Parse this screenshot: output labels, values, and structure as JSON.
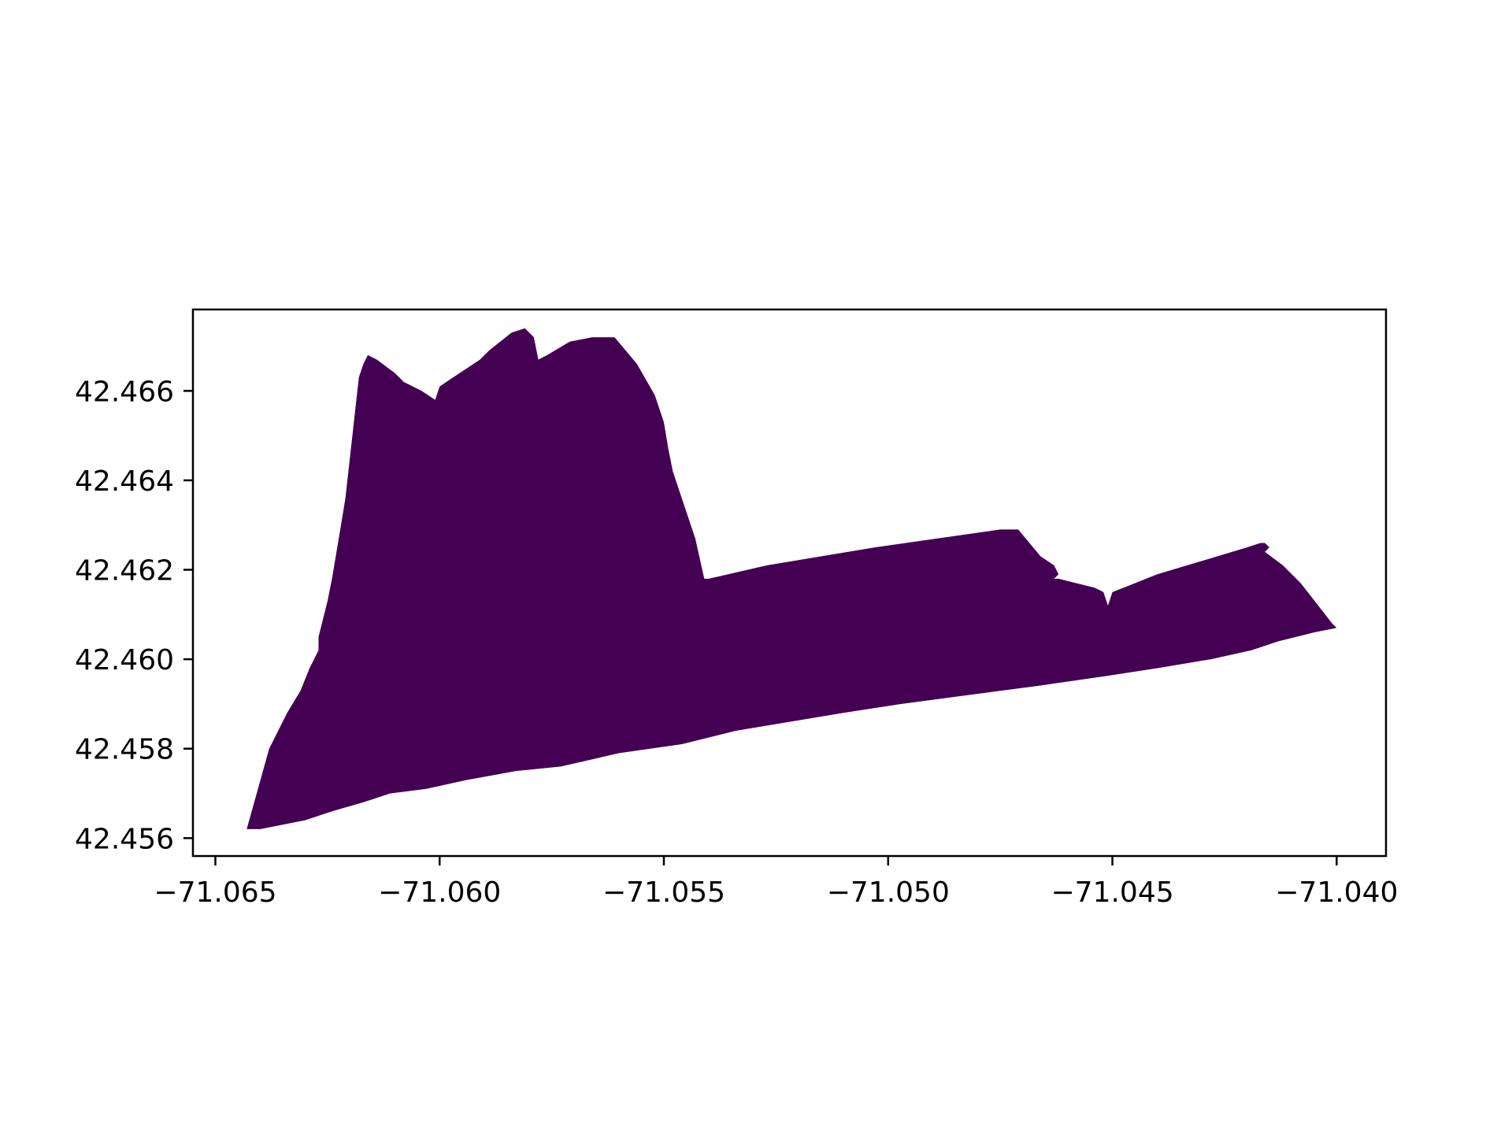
{
  "chart_data": {
    "type": "map",
    "title": "",
    "xlabel": "",
    "ylabel": "",
    "xlim": [
      -71.0655,
      -71.0389
    ],
    "ylim": [
      42.4556,
      42.46782
    ],
    "grid": false,
    "legend": false,
    "fill_color": "#440154",
    "axes_color": "#000000",
    "x_ticks": [
      {
        "value": -71.065,
        "label": "−71.065"
      },
      {
        "value": -71.06,
        "label": "−71.060"
      },
      {
        "value": -71.055,
        "label": "−71.055"
      },
      {
        "value": -71.05,
        "label": "−71.050"
      },
      {
        "value": -71.045,
        "label": "−71.045"
      },
      {
        "value": -71.04,
        "label": "−71.040"
      }
    ],
    "y_ticks": [
      {
        "value": 42.456,
        "label": "42.456"
      },
      {
        "value": 42.458,
        "label": "42.458"
      },
      {
        "value": 42.46,
        "label": "42.460"
      },
      {
        "value": 42.462,
        "label": "42.462"
      },
      {
        "value": 42.464,
        "label": "42.464"
      },
      {
        "value": 42.466,
        "label": "42.466"
      }
    ],
    "polygon": [
      [
        -71.0643,
        42.4562
      ],
      [
        -71.064,
        42.4562
      ],
      [
        -71.0635,
        42.4563
      ],
      [
        -71.063,
        42.4564
      ],
      [
        -71.0624,
        42.4566
      ],
      [
        -71.0617,
        42.4568
      ],
      [
        -71.0611,
        42.457
      ],
      [
        -71.0603,
        42.4571
      ],
      [
        -71.0594,
        42.4573
      ],
      [
        -71.0583,
        42.4575
      ],
      [
        -71.0573,
        42.4576
      ],
      [
        -71.056,
        42.4579
      ],
      [
        -71.0546,
        42.4581
      ],
      [
        -71.0534,
        42.4584
      ],
      [
        -71.0522,
        42.4586
      ],
      [
        -71.051,
        42.4588
      ],
      [
        -71.0497,
        42.459
      ],
      [
        -71.0482,
        42.4592
      ],
      [
        -71.0467,
        42.4594
      ],
      [
        -71.0453,
        42.4596
      ],
      [
        -71.044,
        42.4598
      ],
      [
        -71.0428,
        42.46
      ],
      [
        -71.0419,
        42.4602
      ],
      [
        -71.0413,
        42.4604
      ],
      [
        -71.0405,
        42.4606
      ],
      [
        -71.04,
        42.4607
      ],
      [
        -71.0401,
        42.4608
      ],
      [
        -71.0408,
        42.4617
      ],
      [
        -71.0412,
        42.4621
      ],
      [
        -71.0416,
        42.4624
      ],
      [
        -71.0415,
        42.4625
      ],
      [
        -71.0416,
        42.4626
      ],
      [
        -71.0417,
        42.4626
      ],
      [
        -71.042,
        42.4625
      ],
      [
        -71.043,
        42.4622
      ],
      [
        -71.044,
        42.4619
      ],
      [
        -71.0445,
        42.4617
      ],
      [
        -71.045,
        42.4615
      ],
      [
        -71.0451,
        42.4612
      ],
      [
        -71.0452,
        42.4615
      ],
      [
        -71.0454,
        42.4616
      ],
      [
        -71.0458,
        42.4617
      ],
      [
        -71.0462,
        42.4618
      ],
      [
        -71.0463,
        42.4618
      ],
      [
        -71.0462,
        42.4619
      ],
      [
        -71.0463,
        42.4621
      ],
      [
        -71.0466,
        42.4623
      ],
      [
        -71.0471,
        42.4629
      ],
      [
        -71.0475,
        42.4629
      ],
      [
        -71.0489,
        42.4627
      ],
      [
        -71.0503,
        42.4625
      ],
      [
        -71.0515,
        42.4623
      ],
      [
        -71.0527,
        42.4621
      ],
      [
        -71.054,
        42.4618
      ],
      [
        -71.0541,
        42.4618
      ],
      [
        -71.0543,
        42.4627
      ],
      [
        -71.0546,
        42.4636
      ],
      [
        -71.0548,
        42.4642
      ],
      [
        -71.0549,
        42.4647
      ],
      [
        -71.055,
        42.4653
      ],
      [
        -71.0552,
        42.4659
      ],
      [
        -71.0556,
        42.4666
      ],
      [
        -71.0561,
        42.4672
      ],
      [
        -71.0566,
        42.4672
      ],
      [
        -71.0571,
        42.4671
      ],
      [
        -71.0576,
        42.4668
      ],
      [
        -71.0578,
        42.4667
      ],
      [
        -71.0579,
        42.4672
      ],
      [
        -71.0581,
        42.4674
      ],
      [
        -71.0584,
        42.4673
      ],
      [
        -71.0589,
        42.4669
      ],
      [
        -71.0591,
        42.4667
      ],
      [
        -71.0594,
        42.4665
      ],
      [
        -71.0597,
        42.4663
      ],
      [
        -71.06,
        42.4661
      ],
      [
        -71.0601,
        42.4658
      ],
      [
        -71.0604,
        42.466
      ],
      [
        -71.0608,
        42.4662
      ],
      [
        -71.061,
        42.4664
      ],
      [
        -71.0614,
        42.4667
      ],
      [
        -71.0616,
        42.4668
      ],
      [
        -71.0617,
        42.4666
      ],
      [
        -71.0618,
        42.4663
      ],
      [
        -71.062,
        42.4645
      ],
      [
        -71.0621,
        42.4636
      ],
      [
        -71.0622,
        42.463
      ],
      [
        -71.0624,
        42.4618
      ],
      [
        -71.0625,
        42.4613
      ],
      [
        -71.0626,
        42.4609
      ],
      [
        -71.0627,
        42.4605
      ],
      [
        -71.0627,
        42.4602
      ],
      [
        -71.0629,
        42.4598
      ],
      [
        -71.0631,
        42.4593
      ],
      [
        -71.0634,
        42.4588
      ],
      [
        -71.0638,
        42.458
      ],
      [
        -71.0643,
        42.4562
      ]
    ]
  }
}
